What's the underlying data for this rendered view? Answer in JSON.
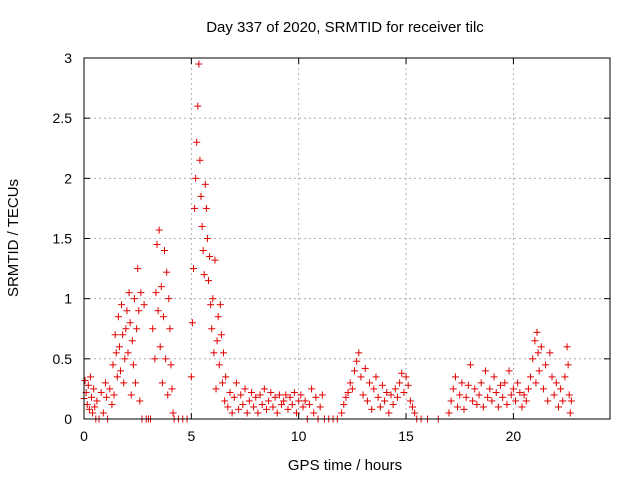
{
  "chart_data": {
    "type": "scatter",
    "title": "Day 337 of 2020, SRMTID for receiver tilc",
    "xlabel": "GPS time / hours",
    "ylabel": "SRMTID / TECUs",
    "xlim": [
      0,
      24.5
    ],
    "ylim": [
      0,
      3
    ],
    "xticks": [
      0,
      5,
      10,
      15,
      20
    ],
    "xtick_labels": [
      "0",
      "5",
      "10",
      "15",
      "20"
    ],
    "yticks": [
      0,
      0.5,
      1,
      1.5,
      2,
      2.5,
      3
    ],
    "ytick_labels": [
      "0",
      "0.5",
      "1",
      "1.5",
      "2",
      "2.5",
      "3"
    ],
    "grid": true,
    "marker": "+",
    "series": [
      {
        "name": "SRMTID",
        "color": "#e00000",
        "points": [
          [
            0.0,
            0.17
          ],
          [
            0.05,
            0.32
          ],
          [
            0.1,
            0.22
          ],
          [
            0.15,
            0.12
          ],
          [
            0.2,
            0.28
          ],
          [
            0.25,
            0.08
          ],
          [
            0.3,
            0.35
          ],
          [
            0.35,
            0.18
          ],
          [
            0.4,
            0.05
          ],
          [
            0.45,
            0.25
          ],
          [
            0.5,
            0.1
          ],
          [
            0.55,
            0.0
          ],
          [
            0.6,
            0.15
          ],
          [
            0.7,
            0.0
          ],
          [
            0.8,
            0.22
          ],
          [
            0.9,
            0.05
          ],
          [
            1.0,
            0.3
          ],
          [
            1.05,
            0.18
          ],
          [
            1.1,
            0.0
          ],
          [
            1.2,
            0.25
          ],
          [
            1.3,
            0.12
          ],
          [
            1.35,
            0.45
          ],
          [
            1.4,
            0.2
          ],
          [
            1.45,
            0.7
          ],
          [
            1.5,
            0.55
          ],
          [
            1.55,
            0.35
          ],
          [
            1.6,
            0.85
          ],
          [
            1.65,
            0.6
          ],
          [
            1.7,
            0.4
          ],
          [
            1.75,
            0.95
          ],
          [
            1.8,
            0.7
          ],
          [
            1.85,
            0.3
          ],
          [
            1.9,
            0.5
          ],
          [
            1.95,
            0.75
          ],
          [
            2.0,
            0.9
          ],
          [
            2.05,
            0.55
          ],
          [
            2.1,
            1.05
          ],
          [
            2.15,
            0.8
          ],
          [
            2.2,
            0.2
          ],
          [
            2.25,
            0.65
          ],
          [
            2.3,
            0.45
          ],
          [
            2.35,
            1.0
          ],
          [
            2.4,
            0.3
          ],
          [
            2.45,
            0.75
          ],
          [
            2.5,
            1.25
          ],
          [
            2.55,
            0.9
          ],
          [
            2.6,
            0.15
          ],
          [
            2.65,
            1.05
          ],
          [
            2.7,
            0.0
          ],
          [
            2.8,
            0.95
          ],
          [
            2.9,
            0.0
          ],
          [
            3.0,
            0.0
          ],
          [
            3.1,
            0.0
          ],
          [
            3.2,
            0.75
          ],
          [
            3.3,
            0.5
          ],
          [
            3.35,
            1.05
          ],
          [
            3.4,
            1.45
          ],
          [
            3.45,
            0.9
          ],
          [
            3.5,
            1.57
          ],
          [
            3.55,
            0.6
          ],
          [
            3.6,
            1.1
          ],
          [
            3.65,
            0.3
          ],
          [
            3.7,
            0.85
          ],
          [
            3.75,
            1.4
          ],
          [
            3.8,
            0.5
          ],
          [
            3.85,
            1.22
          ],
          [
            3.9,
            0.2
          ],
          [
            3.95,
            1.0
          ],
          [
            4.0,
            0.75
          ],
          [
            4.05,
            0.45
          ],
          [
            4.1,
            0.25
          ],
          [
            4.15,
            0.05
          ],
          [
            4.2,
            0.0
          ],
          [
            4.4,
            0.0
          ],
          [
            4.6,
            0.0
          ],
          [
            4.8,
            0.0
          ],
          [
            5.0,
            0.35
          ],
          [
            5.05,
            0.8
          ],
          [
            5.1,
            1.25
          ],
          [
            5.15,
            1.75
          ],
          [
            5.2,
            2.0
          ],
          [
            5.25,
            2.3
          ],
          [
            5.3,
            2.6
          ],
          [
            5.35,
            2.95
          ],
          [
            5.4,
            2.15
          ],
          [
            5.45,
            1.85
          ],
          [
            5.5,
            1.6
          ],
          [
            5.55,
            1.4
          ],
          [
            5.6,
            1.2
          ],
          [
            5.65,
            1.95
          ],
          [
            5.7,
            1.75
          ],
          [
            5.75,
            1.5
          ],
          [
            5.8,
            1.15
          ],
          [
            5.85,
            1.35
          ],
          [
            5.9,
            0.95
          ],
          [
            5.95,
            0.75
          ],
          [
            6.0,
            1.0
          ],
          [
            6.05,
            0.55
          ],
          [
            6.1,
            1.32
          ],
          [
            6.15,
            0.25
          ],
          [
            6.2,
            0.65
          ],
          [
            6.25,
            0.85
          ],
          [
            6.3,
            0.45
          ],
          [
            6.35,
            0.95
          ],
          [
            6.4,
            0.7
          ],
          [
            6.45,
            0.3
          ],
          [
            6.5,
            0.55
          ],
          [
            6.55,
            0.15
          ],
          [
            6.6,
            0.35
          ],
          [
            6.7,
            0.1
          ],
          [
            6.8,
            0.22
          ],
          [
            6.9,
            0.05
          ],
          [
            7.0,
            0.18
          ],
          [
            7.1,
            0.3
          ],
          [
            7.2,
            0.08
          ],
          [
            7.3,
            0.2
          ],
          [
            7.4,
            0.12
          ],
          [
            7.5,
            0.25
          ],
          [
            7.6,
            0.05
          ],
          [
            7.7,
            0.15
          ],
          [
            7.8,
            0.22
          ],
          [
            7.9,
            0.1
          ],
          [
            8.0,
            0.18
          ],
          [
            8.1,
            0.05
          ],
          [
            8.2,
            0.2
          ],
          [
            8.3,
            0.12
          ],
          [
            8.4,
            0.25
          ],
          [
            8.5,
            0.08
          ],
          [
            8.6,
            0.15
          ],
          [
            8.7,
            0.22
          ],
          [
            8.8,
            0.1
          ],
          [
            8.9,
            0.18
          ],
          [
            9.0,
            0.05
          ],
          [
            9.1,
            0.2
          ],
          [
            9.2,
            0.12
          ],
          [
            9.3,
            0.15
          ],
          [
            9.4,
            0.2
          ],
          [
            9.5,
            0.08
          ],
          [
            9.6,
            0.18
          ],
          [
            9.7,
            0.12
          ],
          [
            9.8,
            0.22
          ],
          [
            9.9,
            0.05
          ],
          [
            10.0,
            0.15
          ],
          [
            10.1,
            0.2
          ],
          [
            10.2,
            0.1
          ],
          [
            10.3,
            0.15
          ],
          [
            10.4,
            0.0
          ],
          [
            10.5,
            0.12
          ],
          [
            10.6,
            0.25
          ],
          [
            10.7,
            0.05
          ],
          [
            10.8,
            0.18
          ],
          [
            10.9,
            0.0
          ],
          [
            11.0,
            0.1
          ],
          [
            11.1,
            0.2
          ],
          [
            11.2,
            0.0
          ],
          [
            11.4,
            0.0
          ],
          [
            11.6,
            0.0
          ],
          [
            11.8,
            0.0
          ],
          [
            12.0,
            0.05
          ],
          [
            12.1,
            0.12
          ],
          [
            12.2,
            0.18
          ],
          [
            12.3,
            0.22
          ],
          [
            12.4,
            0.3
          ],
          [
            12.5,
            0.25
          ],
          [
            12.6,
            0.4
          ],
          [
            12.7,
            0.48
          ],
          [
            12.8,
            0.55
          ],
          [
            12.9,
            0.35
          ],
          [
            13.0,
            0.2
          ],
          [
            13.1,
            0.42
          ],
          [
            13.2,
            0.15
          ],
          [
            13.3,
            0.3
          ],
          [
            13.4,
            0.08
          ],
          [
            13.5,
            0.25
          ],
          [
            13.6,
            0.35
          ],
          [
            13.7,
            0.18
          ],
          [
            13.8,
            0.1
          ],
          [
            13.9,
            0.28
          ],
          [
            14.0,
            0.15
          ],
          [
            14.1,
            0.22
          ],
          [
            14.2,
            0.05
          ],
          [
            14.3,
            0.2
          ],
          [
            14.4,
            0.12
          ],
          [
            14.5,
            0.25
          ],
          [
            14.6,
            0.18
          ],
          [
            14.7,
            0.3
          ],
          [
            14.8,
            0.38
          ],
          [
            14.9,
            0.22
          ],
          [
            15.0,
            0.35
          ],
          [
            15.1,
            0.28
          ],
          [
            15.2,
            0.15
          ],
          [
            15.3,
            0.1
          ],
          [
            15.4,
            0.05
          ],
          [
            15.5,
            0.0
          ],
          [
            15.7,
            0.0
          ],
          [
            16.0,
            0.0
          ],
          [
            16.5,
            0.0
          ],
          [
            17.0,
            0.05
          ],
          [
            17.1,
            0.15
          ],
          [
            17.2,
            0.25
          ],
          [
            17.3,
            0.35
          ],
          [
            17.4,
            0.1
          ],
          [
            17.5,
            0.2
          ],
          [
            17.6,
            0.3
          ],
          [
            17.7,
            0.08
          ],
          [
            17.8,
            0.18
          ],
          [
            17.9,
            0.28
          ],
          [
            18.0,
            0.45
          ],
          [
            18.1,
            0.15
          ],
          [
            18.2,
            0.25
          ],
          [
            18.3,
            0.12
          ],
          [
            18.4,
            0.2
          ],
          [
            18.5,
            0.3
          ],
          [
            18.6,
            0.1
          ],
          [
            18.7,
            0.4
          ],
          [
            18.8,
            0.18
          ],
          [
            18.9,
            0.25
          ],
          [
            19.0,
            0.15
          ],
          [
            19.1,
            0.35
          ],
          [
            19.2,
            0.22
          ],
          [
            19.3,
            0.1
          ],
          [
            19.4,
            0.28
          ],
          [
            19.5,
            0.18
          ],
          [
            19.6,
            0.3
          ],
          [
            19.7,
            0.12
          ],
          [
            19.8,
            0.4
          ],
          [
            19.9,
            0.2
          ],
          [
            20.0,
            0.25
          ],
          [
            20.1,
            0.15
          ],
          [
            20.2,
            0.3
          ],
          [
            20.3,
            0.22
          ],
          [
            20.4,
            0.1
          ],
          [
            20.5,
            0.2
          ],
          [
            20.6,
            0.15
          ],
          [
            20.7,
            0.25
          ],
          [
            20.8,
            0.35
          ],
          [
            20.9,
            0.5
          ],
          [
            21.0,
            0.65
          ],
          [
            21.05,
            0.3
          ],
          [
            21.1,
            0.72
          ],
          [
            21.15,
            0.55
          ],
          [
            21.2,
            0.4
          ],
          [
            21.3,
            0.6
          ],
          [
            21.4,
            0.25
          ],
          [
            21.5,
            0.45
          ],
          [
            21.6,
            0.15
          ],
          [
            21.7,
            0.55
          ],
          [
            21.8,
            0.35
          ],
          [
            21.9,
            0.2
          ],
          [
            22.0,
            0.3
          ],
          [
            22.1,
            0.1
          ],
          [
            22.2,
            0.25
          ],
          [
            22.3,
            0.15
          ],
          [
            22.4,
            0.35
          ],
          [
            22.5,
            0.6
          ],
          [
            22.55,
            0.45
          ],
          [
            22.6,
            0.2
          ],
          [
            22.65,
            0.05
          ],
          [
            22.7,
            0.15
          ]
        ]
      }
    ]
  }
}
